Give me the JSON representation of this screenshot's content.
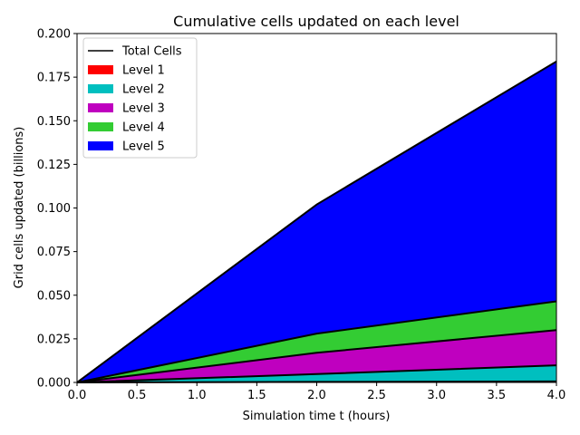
{
  "chart_data": {
    "type": "area",
    "title": "Cumulative cells updated on each level",
    "xlabel": "Simulation time t (hours)",
    "ylabel": "Grid cells updated (billions)",
    "xlim": [
      0,
      4
    ],
    "ylim": [
      0,
      0.2
    ],
    "x_ticks": [
      "0.0",
      "0.5",
      "1.0",
      "1.5",
      "2.0",
      "2.5",
      "3.0",
      "3.5",
      "4.0"
    ],
    "y_ticks": [
      "0.000",
      "0.025",
      "0.050",
      "0.075",
      "0.100",
      "0.125",
      "0.150",
      "0.175",
      "0.200"
    ],
    "grid": false,
    "legend_position": "top-left",
    "stacked": true,
    "x": [
      0,
      2,
      4
    ],
    "series": [
      {
        "name": "Level 1",
        "color": "#ff0000",
        "values": [
          0,
          0.0003,
          0.0006
        ]
      },
      {
        "name": "Level 2",
        "color": "#00bfbf",
        "values": [
          0,
          0.0045,
          0.0092
        ]
      },
      {
        "name": "Level 3",
        "color": "#bf00bf",
        "values": [
          0,
          0.0122,
          0.0202
        ]
      },
      {
        "name": "Level 4",
        "color": "#33cc33",
        "values": [
          0,
          0.011,
          0.0165
        ]
      },
      {
        "name": "Level 5",
        "color": "#0000ff",
        "values": [
          0,
          0.074,
          0.1375
        ]
      }
    ],
    "total": {
      "name": "Total Cells",
      "color": "#000000",
      "values": [
        0,
        0.102,
        0.184
      ]
    }
  }
}
